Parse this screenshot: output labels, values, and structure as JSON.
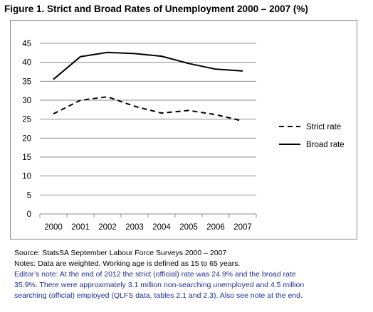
{
  "title": "Figure 1. Strict and Broad Rates of Unemployment 2000 – 2007 (%)",
  "chart_data": {
    "type": "line",
    "categories": [
      "2000",
      "2001",
      "2002",
      "2003",
      "2004",
      "2005",
      "2006",
      "2007"
    ],
    "series": [
      {
        "name": "Strict rate",
        "values": [
          26.4,
          30.0,
          30.9,
          28.4,
          26.6,
          27.3,
          26.2,
          24.5
        ],
        "style": "dashed",
        "color": "#000000"
      },
      {
        "name": "Broad rate",
        "values": [
          35.5,
          41.5,
          42.6,
          42.3,
          41.6,
          39.7,
          38.2,
          37.7
        ],
        "style": "solid",
        "color": "#000000"
      }
    ],
    "ylim": [
      0,
      45
    ],
    "yticks": [
      "0",
      "5",
      "10",
      "15",
      "20",
      "25",
      "30",
      "35",
      "40",
      "45"
    ],
    "grid": true,
    "grid_color": "#8c8c8c",
    "legend_position": "right"
  },
  "notes": {
    "source": "Source: StatsSA September Labour Force Surveys 2000 – 2007",
    "weighting": "Notes: Data are weighted. Working age is defined as 15 to 65 years.",
    "editor_line1": "Editor’s note:  At the end of 2012 the strict (official) rate was 24.9% and the broad rate",
    "editor_line2": "35.9%. There were approximately 3.1 million non-searching unemployed and 4.5 million",
    "editor_line3": "searching (official) employed (QLFS data, tables 2.1 and 2.3). Also see note at the end.",
    "editor_color": "#1f2f9a"
  }
}
